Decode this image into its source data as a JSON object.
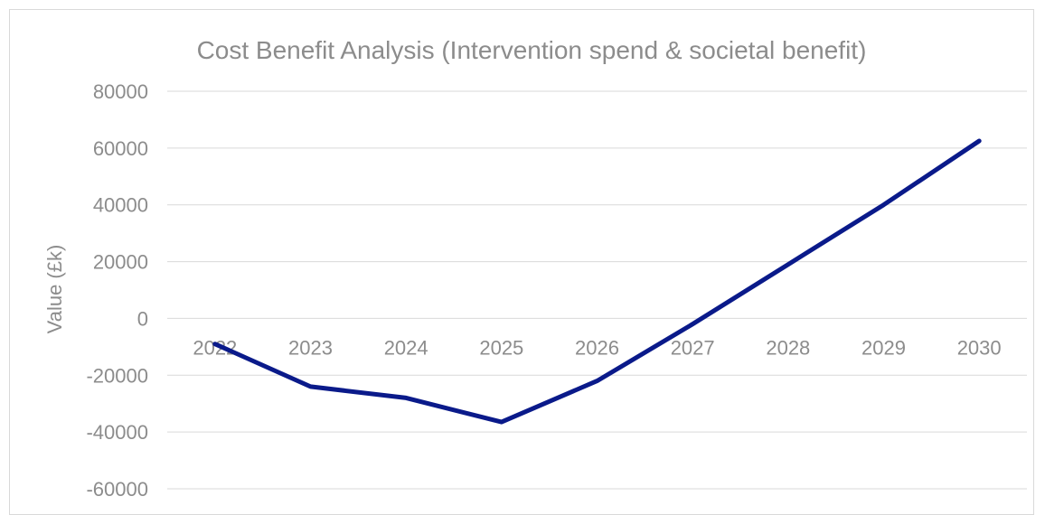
{
  "chart_data": {
    "type": "line",
    "title": "Cost Benefit Analysis (Intervention spend & societal benefit)",
    "xlabel": "",
    "ylabel": "Value (£k)",
    "categories": [
      "2022",
      "2023",
      "2024",
      "2025",
      "2026",
      "2027",
      "2028",
      "2029",
      "2030"
    ],
    "series": [
      {
        "values": [
          -9000,
          -24000,
          -28000,
          -36500,
          -22000,
          -2000,
          19000,
          40000,
          62500
        ]
      }
    ],
    "ylim": [
      -60000,
      80000
    ],
    "yticks": [
      80000,
      60000,
      40000,
      20000,
      0,
      -20000,
      -40000,
      -60000
    ],
    "grid": true,
    "legend": "none",
    "colors": {
      "line": "#0a1a8a",
      "grid": "#d9d9d9",
      "text": "#8c8c8c"
    }
  }
}
